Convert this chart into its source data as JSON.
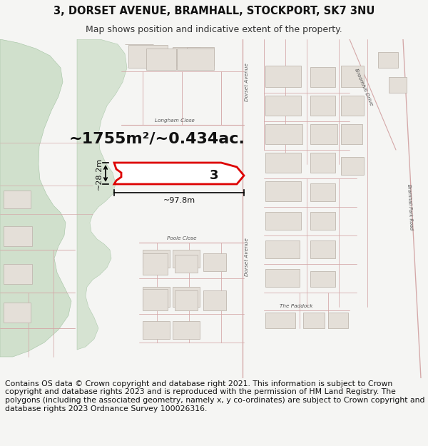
{
  "title_line1": "3, DORSET AVENUE, BRAMHALL, STOCKPORT, SK7 3NU",
  "title_line2": "Map shows position and indicative extent of the property.",
  "footer_text": "Contains OS data © Crown copyright and database right 2021. This information is subject to Crown copyright and database rights 2023 and is reproduced with the permission of HM Land Registry. The polygons (including the associated geometry, namely x, y co-ordinates) are subject to Crown copyright and database rights 2023 Ordnance Survey 100026316.",
  "area_label": "~1755m²/~0.434ac.",
  "width_label": "~97.8m",
  "height_label": "~28.2m",
  "property_number": "3",
  "bg_color": "#f5f5f3",
  "map_bg": "#f7f6f4",
  "green_area_color": "#ccdec8",
  "road_color_light": "#e8c8c8",
  "road_stroke": "#d4aaaa",
  "building_fill": "#e8e4de",
  "building_stroke": "#c8c0b8",
  "property_fill": "#ffffff",
  "property_stroke": "#dd0000",
  "dim_color": "#111111",
  "label_color": "#222222",
  "road_label_color": "#555555",
  "title_fontsize": 10.5,
  "subtitle_fontsize": 9,
  "area_fontsize": 16,
  "footer_fontsize": 7.8,
  "header_bg": "#f5f5f3",
  "footer_bg": "#f5f5f3"
}
